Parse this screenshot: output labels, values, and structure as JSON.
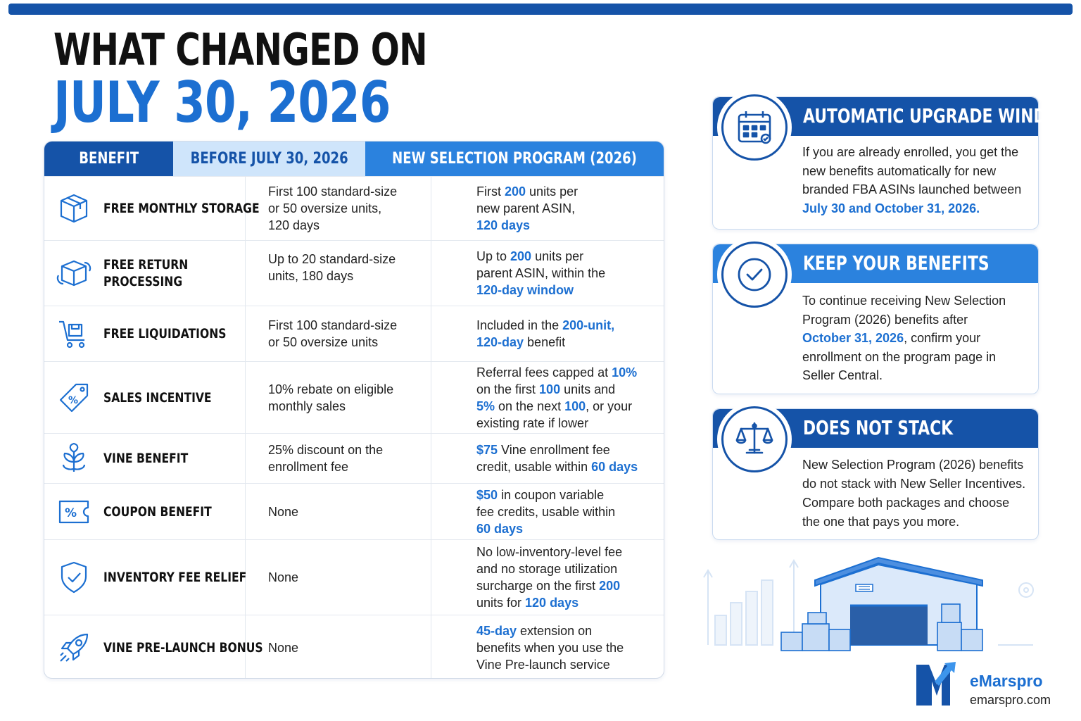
{
  "title": {
    "line1": "WHAT CHANGED ON",
    "line2": "JULY 30, 2026"
  },
  "table": {
    "headers": [
      "BENEFIT",
      "BEFORE JULY 30, 2026",
      "NEW SELECTION PROGRAM (2026)"
    ],
    "rows": [
      {
        "icon": "box-icon",
        "benefit": "FREE MONTHLY STORAGE",
        "before": [
          "First 100 standard-size",
          "or 50 oversize units,",
          "120 days"
        ]
      },
      {
        "icon": "return-box-icon",
        "benefit_l1": "FREE RETURN",
        "benefit_l2": "PROCESSING",
        "before": [
          "Up to 20 standard-size",
          "units, 180 days"
        ]
      },
      {
        "icon": "cart-icon",
        "benefit": "FREE LIQUIDATIONS",
        "before": [
          "First 100 standard-size",
          "or 50 oversize units"
        ]
      },
      {
        "icon": "percent-tag-icon",
        "benefit": "SALES INCENTIVE",
        "before": [
          "10% rebate on eligible",
          "monthly sales"
        ]
      },
      {
        "icon": "vine-icon",
        "benefit": "VINE BENEFIT",
        "before": [
          "25% discount on the",
          "enrollment fee"
        ]
      },
      {
        "icon": "coupon-icon",
        "benefit": "COUPON BENEFIT",
        "before": [
          "None"
        ]
      },
      {
        "icon": "shield-check-icon",
        "benefit": "INVENTORY FEE RELIEF",
        "before": [
          "None"
        ]
      },
      {
        "icon": "rocket-icon",
        "benefit": "VINE PRE-LAUNCH BONUS",
        "before": [
          "None"
        ]
      }
    ],
    "after": {
      "r0": {
        "a": "First ",
        "b": "200",
        "c": " units per",
        "d": "new parent ASIN,",
        "e": "120 days"
      },
      "r1": {
        "a": "Up to ",
        "b": "200",
        "c": " units per",
        "d": "parent ASIN, within the",
        "e": "120-day window"
      },
      "r2": {
        "a": "Included in the ",
        "b": "200-unit,",
        "c": "120-day",
        "d": " benefit"
      },
      "r3": {
        "a": "Referral fees capped at ",
        "b": "10%",
        "c": "on the first ",
        "d": "100",
        "e": " units and",
        "f": "5%",
        "g": " on the next ",
        "h": "100",
        "i": ", or your",
        "j": "existing rate if lower"
      },
      "r4": {
        "a": "$75",
        "b": " Vine enrollment fee",
        "c": "credit, usable within ",
        "d": "60 days"
      },
      "r5": {
        "a": "$50",
        "b": " in coupon variable",
        "c": "fee credits, usable within",
        "d": "60 days"
      },
      "r6": {
        "a": "No low-inventory-level fee",
        "b": "and no storage utilization",
        "c": "surcharge on the first ",
        "d": "200",
        "e": "units for ",
        "f": "120 days"
      },
      "r7": {
        "a": "45-day",
        "b": " extension on",
        "c": "benefits when you use the",
        "d": "Vine Pre-launch service"
      }
    }
  },
  "cards": [
    {
      "title": "AUTOMATIC UPGRADE WINDOW",
      "icon": "calendar-icon",
      "head_color": "#1553a8",
      "l1": "If you are already enrolled, you get the",
      "l2": "new benefits automatically for new",
      "l3": "branded FBA ASINs launched between",
      "hl": "July 30 and October 31, 2026."
    },
    {
      "title": "KEEP YOUR BENEFITS",
      "icon": "check-circle-icon",
      "head_color": "#2b82de",
      "l1": "To continue receiving New Selection",
      "l2": "Program (2026) benefits after",
      "hl": "October 31, 2026",
      "l3": ", confirm your",
      "l4": "enrollment on the program page in",
      "l5": "Seller Central."
    },
    {
      "title": "DOES NOT STACK",
      "icon": "scale-icon",
      "head_color": "#1553a8",
      "l1": "New Selection Program (2026) benefits",
      "l2": "do not stack with New Seller Incentives.",
      "l3": "Compare both packages and choose",
      "l4": "the one that pays you more."
    }
  ],
  "brand": {
    "name": "eMarspro",
    "url": "emarspro.com",
    "icon": "emarspro-logo-icon",
    "illustration": "warehouse-icon"
  },
  "colors": {
    "dark_blue": "#1553a8",
    "blue": "#1c6fd1",
    "light_blue": "#cfe5fb",
    "mid_blue": "#2b82de"
  }
}
